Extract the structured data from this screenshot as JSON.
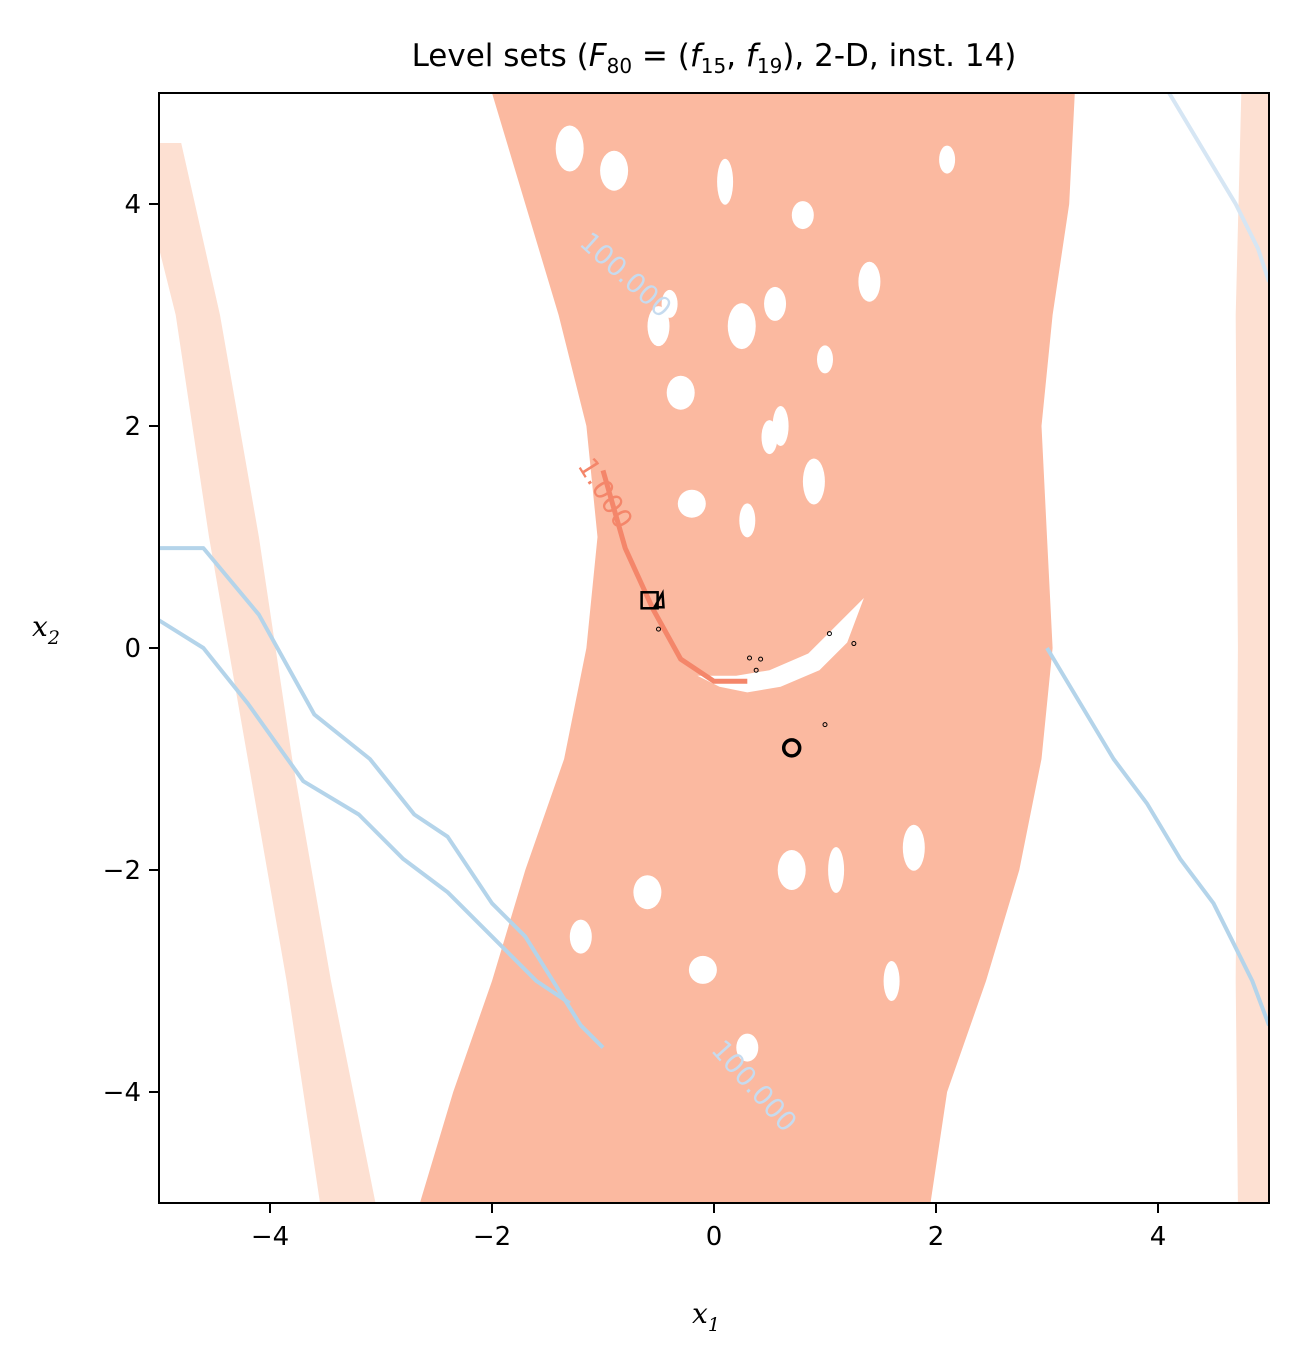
{
  "chart_data": {
    "type": "contour",
    "title": "Level sets (F80 = (f15, f19), 2-D, inst. 14)",
    "title_parts": {
      "prefix": "Level sets (",
      "F": "F",
      "F_sub": "80",
      "eq": " = (",
      "f1": "f",
      "f1_sub": "15",
      "comma": ", ",
      "f2": "f",
      "f2_sub": "19",
      "suffix": "), 2-D, inst. 14)"
    },
    "xlabel": "x",
    "xlabel_sub": "1",
    "ylabel": "x",
    "ylabel_sub": "2",
    "xlim": [
      -5,
      5
    ],
    "ylim": [
      -5,
      5
    ],
    "xticks": [
      -4,
      -2,
      0,
      2,
      4
    ],
    "yticks": [
      -4,
      -2,
      0,
      2,
      4
    ],
    "xtick_labels": [
      "−4",
      "−2",
      "0",
      "2",
      "4"
    ],
    "ytick_labels": [
      "−4",
      "−2",
      "0",
      "2",
      "4"
    ],
    "grid": false,
    "colors": {
      "red_fill": "#fbb9a0",
      "red_line": "#f4866a",
      "red_pale": "#fde0d2",
      "blue_line": "#b4d4ea",
      "blue_pale": "#d6e6f4",
      "marker": "#000000"
    },
    "contour_labels": [
      {
        "text": "100.000",
        "x": -0.85,
        "y": 3.3,
        "rotation": 42,
        "color": "#c6dbef"
      },
      {
        "text": "1.000",
        "x": -1.05,
        "y": 1.35,
        "rotation": 58,
        "color": "#f4866a"
      },
      {
        "text": "100.000",
        "x": 0.3,
        "y": -4.0,
        "rotation": 48,
        "color": "#c6dbef"
      }
    ],
    "red_band_left": [
      [
        -2.65,
        -5
      ],
      [
        -2.35,
        -4
      ],
      [
        -2.0,
        -3
      ],
      [
        -1.7,
        -2
      ],
      [
        -1.35,
        -1
      ],
      [
        -1.15,
        0
      ],
      [
        -1.05,
        1
      ],
      [
        -1.15,
        2
      ],
      [
        -1.4,
        3
      ],
      [
        -1.7,
        4
      ],
      [
        -2.0,
        5
      ]
    ],
    "red_band_right": [
      [
        -2.0,
        5
      ],
      [
        3.25,
        5
      ],
      [
        3.2,
        4
      ],
      [
        3.05,
        3
      ],
      [
        2.95,
        2
      ],
      [
        3.0,
        1
      ],
      [
        3.05,
        0
      ],
      [
        2.95,
        -1
      ],
      [
        2.75,
        -2
      ],
      [
        2.45,
        -3
      ],
      [
        2.1,
        -4
      ],
      [
        1.95,
        -5
      ],
      [
        -2.65,
        -5
      ]
    ],
    "pale_band_left": [
      [
        -5,
        4.55
      ],
      [
        -4.8,
        4.55
      ],
      [
        -4.45,
        3
      ],
      [
        -4.1,
        1
      ],
      [
        -3.8,
        -1
      ],
      [
        -3.45,
        -3
      ],
      [
        -3.05,
        -5
      ],
      [
        -3.55,
        -5
      ],
      [
        -3.85,
        -3
      ],
      [
        -4.2,
        -1
      ],
      [
        -4.55,
        1
      ],
      [
        -4.85,
        3
      ],
      [
        -5,
        3.6
      ]
    ],
    "pale_band_right": [
      [
        4.75,
        5
      ],
      [
        5,
        5
      ],
      [
        5,
        -5
      ],
      [
        4.72,
        -5
      ],
      [
        4.7,
        -3
      ],
      [
        4.72,
        0
      ],
      [
        4.7,
        3
      ]
    ],
    "blue_curve_left": [
      [
        -5,
        0.9
      ],
      [
        -4.6,
        0.9
      ],
      [
        -4.1,
        0.3
      ],
      [
        -3.6,
        -0.6
      ],
      [
        -3.1,
        -1.0
      ],
      [
        -2.7,
        -1.5
      ],
      [
        -2.4,
        -1.7
      ],
      [
        -2.0,
        -2.3
      ],
      [
        -1.7,
        -2.6
      ],
      [
        -1.45,
        -3.0
      ],
      [
        -1.2,
        -3.4
      ],
      [
        -1.0,
        -3.6
      ]
    ],
    "blue_curve_left2": [
      [
        -5,
        0.25
      ],
      [
        -4.6,
        0.0
      ],
      [
        -4.2,
        -0.5
      ],
      [
        -3.7,
        -1.2
      ],
      [
        -3.2,
        -1.5
      ],
      [
        -2.8,
        -1.9
      ],
      [
        -2.4,
        -2.2
      ],
      [
        -2.0,
        -2.6
      ],
      [
        -1.6,
        -3.0
      ],
      [
        -1.3,
        -3.2
      ]
    ],
    "blue_curve_right": [
      [
        3.0,
        0.0
      ],
      [
        3.3,
        -0.5
      ],
      [
        3.6,
        -1.0
      ],
      [
        3.9,
        -1.4
      ],
      [
        4.2,
        -1.9
      ],
      [
        4.5,
        -2.3
      ],
      [
        4.7,
        -2.7
      ],
      [
        4.85,
        -3.0
      ],
      [
        5,
        -3.4
      ]
    ],
    "blue_curve_right_top": [
      [
        4.1,
        5
      ],
      [
        4.4,
        4.5
      ],
      [
        4.7,
        4.0
      ],
      [
        4.9,
        3.6
      ],
      [
        5,
        3.3
      ]
    ],
    "white_arc_outer": [
      [
        1.35,
        0.45
      ],
      [
        1.2,
        0.05
      ],
      [
        0.95,
        -0.2
      ],
      [
        0.6,
        -0.35
      ],
      [
        0.3,
        -0.4
      ],
      [
        0.05,
        -0.35
      ],
      [
        -0.15,
        -0.25
      ]
    ],
    "white_arc_inner": [
      [
        -0.15,
        -0.25
      ],
      [
        0.2,
        -0.25
      ],
      [
        0.5,
        -0.2
      ],
      [
        0.85,
        -0.05
      ],
      [
        1.1,
        0.2
      ],
      [
        1.35,
        0.45
      ]
    ],
    "red_arc": [
      [
        -1.0,
        1.6
      ],
      [
        -0.8,
        0.9
      ],
      [
        -0.55,
        0.35
      ],
      [
        -0.3,
        -0.1
      ],
      [
        0.0,
        -0.3
      ],
      [
        0.3,
        -0.3
      ]
    ],
    "markers": {
      "square": {
        "x": -0.58,
        "y": 0.43
      },
      "triangle": {
        "x": -0.5,
        "y": 0.43
      },
      "circle": {
        "x": 0.7,
        "y": -0.9
      },
      "dots": [
        [
          -0.5,
          0.17
        ],
        [
          1.04,
          0.13
        ],
        [
          1.26,
          0.04
        ],
        [
          0.32,
          -0.09
        ],
        [
          0.42,
          -0.1
        ],
        [
          0.38,
          -0.2
        ],
        [
          1.0,
          -0.69
        ]
      ]
    }
  }
}
